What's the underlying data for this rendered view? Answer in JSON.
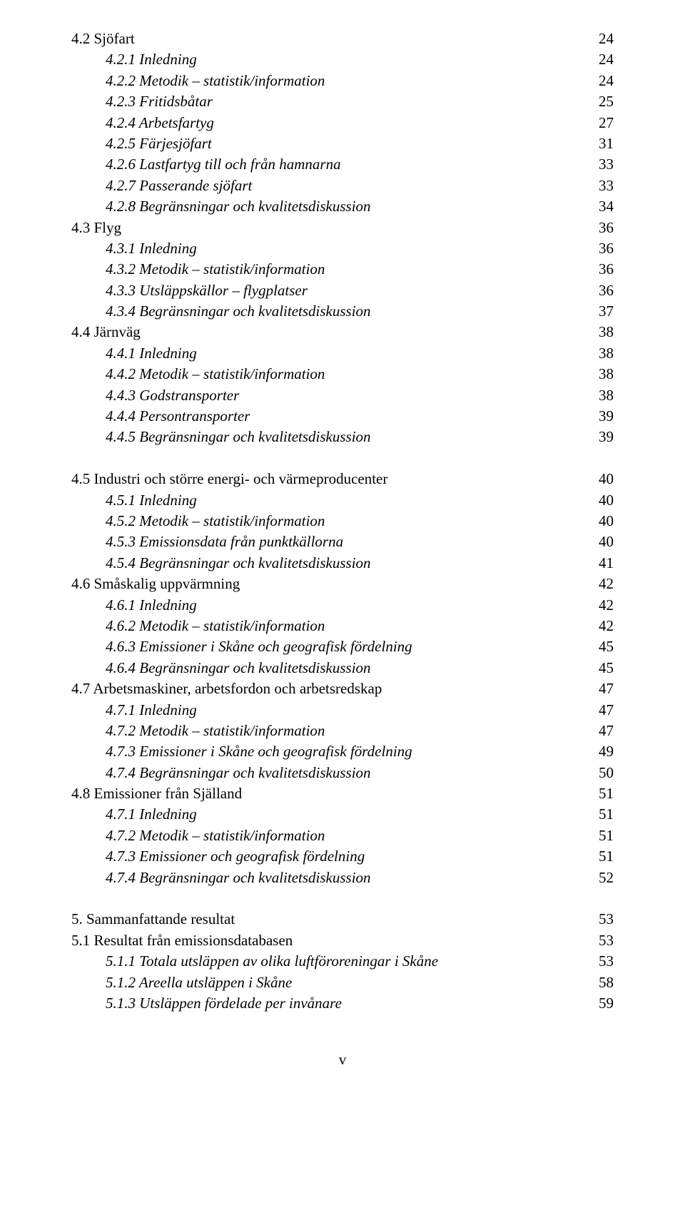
{
  "toc": [
    {
      "label": "4.2 Sjöfart",
      "page": "24",
      "indent": 0,
      "italic": false
    },
    {
      "label": "4.2.1 Inledning",
      "page": "24",
      "indent": 1,
      "italic": true
    },
    {
      "label": "4.2.2 Metodik – statistik/information",
      "page": "24",
      "indent": 1,
      "italic": true
    },
    {
      "label": "4.2.3 Fritidsbåtar",
      "page": "25",
      "indent": 1,
      "italic": true
    },
    {
      "label": "4.2.4 Arbetsfartyg",
      "page": "27",
      "indent": 1,
      "italic": true
    },
    {
      "label": "4.2.5 Färjesjöfart",
      "page": "31",
      "indent": 1,
      "italic": true
    },
    {
      "label": "4.2.6 Lastfartyg till och från hamnarna",
      "page": "33",
      "indent": 1,
      "italic": true
    },
    {
      "label": "4.2.7 Passerande sjöfart",
      "page": "33",
      "indent": 1,
      "italic": true
    },
    {
      "label": "4.2.8 Begränsningar och kvalitetsdiskussion",
      "page": "34",
      "indent": 1,
      "italic": true
    },
    {
      "label": "4.3 Flyg",
      "page": "36",
      "indent": 0,
      "italic": false
    },
    {
      "label": "4.3.1 Inledning",
      "page": "36",
      "indent": 1,
      "italic": true
    },
    {
      "label": "4.3.2 Metodik – statistik/information",
      "page": "36",
      "indent": 1,
      "italic": true
    },
    {
      "label": "4.3.3 Utsläppskällor – flygplatser",
      "page": "36",
      "indent": 1,
      "italic": true
    },
    {
      "label": "4.3.4 Begränsningar och kvalitetsdiskussion",
      "page": "37",
      "indent": 1,
      "italic": true
    },
    {
      "label": "4.4 Järnväg",
      "page": "38",
      "indent": 0,
      "italic": false
    },
    {
      "label": "4.4.1 Inledning",
      "page": "38",
      "indent": 1,
      "italic": true
    },
    {
      "label": "4.4.2 Metodik – statistik/information",
      "page": "38",
      "indent": 1,
      "italic": true
    },
    {
      "label": "4.4.3 Godstransporter",
      "page": "38",
      "indent": 1,
      "italic": true
    },
    {
      "label": "4.4.4 Persontransporter",
      "page": "39",
      "indent": 1,
      "italic": true
    },
    {
      "label": "4.4.5 Begränsningar och kvalitetsdiskussion",
      "page": "39",
      "indent": 1,
      "italic": true
    },
    {
      "spacer": true
    },
    {
      "label": "4.5 Industri och större energi- och värmeproducenter",
      "page": "40",
      "indent": 0,
      "italic": false
    },
    {
      "label": "4.5.1 Inledning",
      "page": "40",
      "indent": 1,
      "italic": true
    },
    {
      "label": "4.5.2 Metodik – statistik/information",
      "page": "40",
      "indent": 1,
      "italic": true
    },
    {
      "label": "4.5.3 Emissionsdata från punktkällorna",
      "page": "40",
      "indent": 1,
      "italic": true
    },
    {
      "label": "4.5.4 Begränsningar och kvalitetsdiskussion",
      "page": "41",
      "indent": 1,
      "italic": true
    },
    {
      "label": "4.6 Småskalig uppvärmning",
      "page": "42",
      "indent": 0,
      "italic": false
    },
    {
      "label": "4.6.1 Inledning",
      "page": "42",
      "indent": 1,
      "italic": true
    },
    {
      "label": "4.6.2 Metodik – statistik/information",
      "page": "42",
      "indent": 1,
      "italic": true
    },
    {
      "label": "4.6.3 Emissioner i Skåne och geografisk fördelning",
      "page": "45",
      "indent": 1,
      "italic": true
    },
    {
      "label": "4.6.4 Begränsningar och kvalitetsdiskussion",
      "page": "45",
      "indent": 1,
      "italic": true
    },
    {
      "label": "4.7 Arbetsmaskiner, arbetsfordon och arbetsredskap",
      "page": "47",
      "indent": 0,
      "italic": false
    },
    {
      "label": "4.7.1 Inledning",
      "page": "47",
      "indent": 1,
      "italic": true
    },
    {
      "label": "4.7.2 Metodik – statistik/information",
      "page": "47",
      "indent": 1,
      "italic": true
    },
    {
      "label": "4.7.3 Emissioner i Skåne och geografisk fördelning",
      "page": "49",
      "indent": 1,
      "italic": true
    },
    {
      "label": "4.7.4 Begränsningar och kvalitetsdiskussion",
      "page": "50",
      "indent": 1,
      "italic": true
    },
    {
      "label": "4.8 Emissioner från Själland",
      "page": "51",
      "indent": 0,
      "italic": false
    },
    {
      "label": "4.7.1 Inledning",
      "page": "51",
      "indent": 1,
      "italic": true
    },
    {
      "label": "4.7.2 Metodik – statistik/information",
      "page": "51",
      "indent": 1,
      "italic": true
    },
    {
      "label": "4.7.3 Emissioner och geografisk fördelning",
      "page": "51",
      "indent": 1,
      "italic": true
    },
    {
      "label": "4.7.4 Begränsningar och kvalitetsdiskussion",
      "page": "52",
      "indent": 1,
      "italic": true
    },
    {
      "spacer": true
    },
    {
      "label": "5. Sammanfattande resultat",
      "page": "53",
      "indent": 0,
      "italic": false
    },
    {
      "label": "5.1 Resultat från emissionsdatabasen",
      "page": "53",
      "indent": 0,
      "italic": false
    },
    {
      "label": "5.1.1 Totala utsläppen av olika luftföroreningar i Skåne",
      "page": "53",
      "indent": 1,
      "italic": true
    },
    {
      "label": "5.1.2 Areella utsläppen i Skåne",
      "page": "58",
      "indent": 1,
      "italic": true
    },
    {
      "label": "5.1.3 Utsläppen fördelade per invånare",
      "page": "59",
      "indent": 1,
      "italic": true
    }
  ],
  "pageNumber": "v"
}
